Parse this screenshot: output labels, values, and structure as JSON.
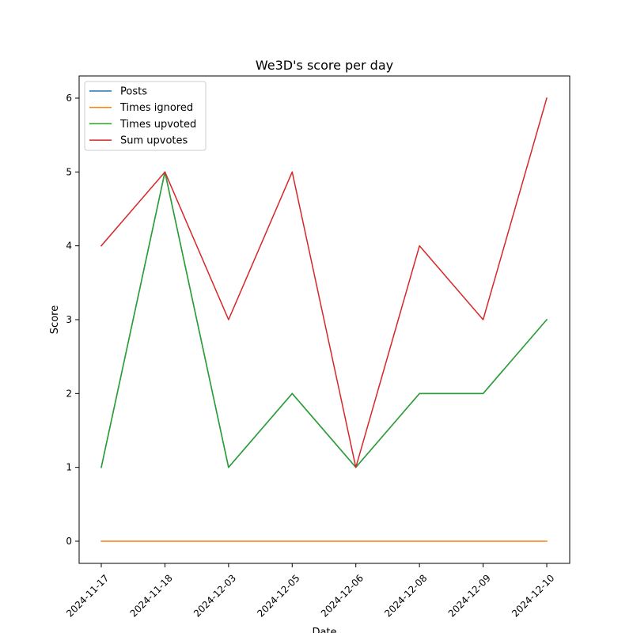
{
  "chart_data": {
    "type": "line",
    "title": "We3D's score per day",
    "xlabel": "Date",
    "ylabel": "Score",
    "categories": [
      "2024-11-17",
      "2024-11-18",
      "2024-12-03",
      "2024-12-05",
      "2024-12-06",
      "2024-12-08",
      "2024-12-09",
      "2024-12-10"
    ],
    "yticks": [
      0,
      1,
      2,
      3,
      4,
      5,
      6
    ],
    "ylim": [
      -0.3,
      6.3
    ],
    "grid": false,
    "legend_position": "top-left",
    "series": [
      {
        "name": "Posts",
        "color": "#1f77b4",
        "values": [
          1,
          5,
          1,
          2,
          1,
          2,
          2,
          3
        ]
      },
      {
        "name": "Times ignored",
        "color": "#ff7f0e",
        "values": [
          0,
          0,
          0,
          0,
          0,
          0,
          0,
          0
        ]
      },
      {
        "name": "Times upvoted",
        "color": "#2ca02c",
        "values": [
          1,
          5,
          1,
          2,
          1,
          2,
          2,
          3
        ]
      },
      {
        "name": "Sum upvotes",
        "color": "#d62728",
        "values": [
          4,
          5,
          3,
          5,
          1,
          4,
          3,
          6
        ]
      }
    ]
  }
}
